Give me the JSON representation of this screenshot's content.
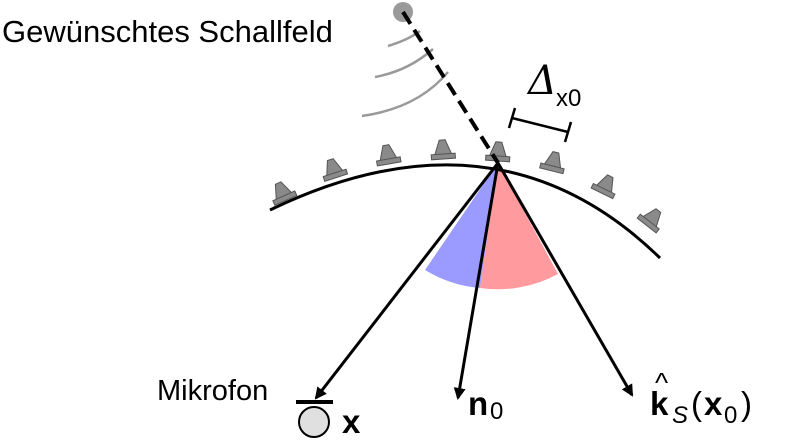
{
  "labels": {
    "title": "Gewünschtes Schallfeld",
    "microphone": "Mikrofon",
    "spacing_symbol": "Δ",
    "spacing_sub": "x0",
    "mic_vector": "x",
    "normal_symbol": "n",
    "normal_sub": "0",
    "k_symbol": "k",
    "k_hat": "^",
    "k_sub": "S",
    "k_arg_open": "(",
    "k_arg_x": "x",
    "k_arg_sub": "0",
    "k_arg_close": ")"
  },
  "colors": {
    "blue_sector": "#9b9bff",
    "red_sector": "#ff9a9e",
    "speaker": "#8a8a8a",
    "source": "#9a9a9a",
    "wavefront": "#9a9a9a",
    "mic_fill": "#e0e0e0"
  }
}
